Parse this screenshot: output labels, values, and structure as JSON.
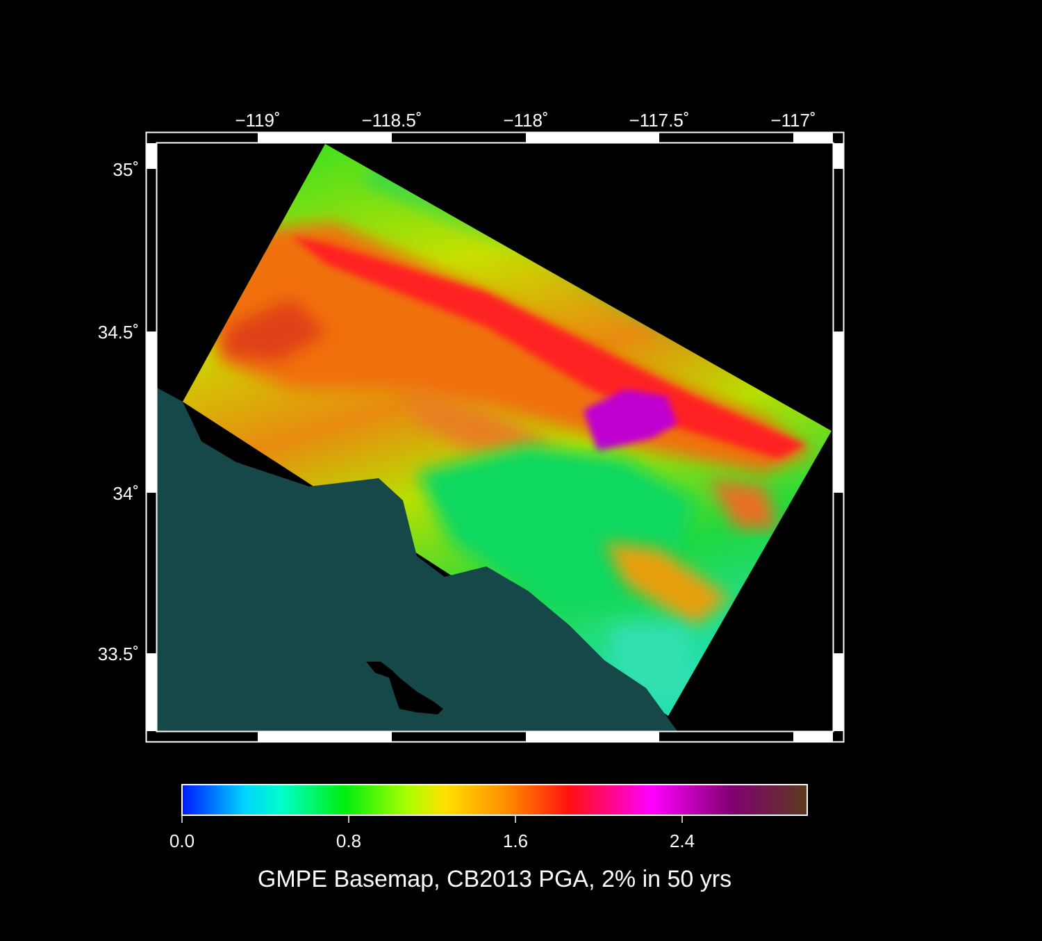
{
  "map": {
    "title": "GMPE Basemap, CB2013 PGA, 2% in 50 yrs",
    "lon_ticks": [
      "−119˚",
      "−118.5˚",
      "−118˚",
      "−117.5˚",
      "−117˚"
    ],
    "lon_values": [
      -119,
      -118.5,
      -118,
      -117.5,
      -117
    ],
    "lat_ticks": [
      "35˚",
      "34.5˚",
      "34˚",
      "33.5˚"
    ],
    "lat_values": [
      35,
      34.5,
      34,
      33.5
    ],
    "lon_range": [
      -119.75,
      -116.73
    ],
    "lat_range": [
      33.27,
      35.08
    ],
    "ocean_color": "#16484a",
    "region": "Southern California (Los Angeles basin, San Gabriel Mountains, Santa Catalina Island)"
  },
  "colorbar": {
    "range": [
      0.0,
      3.0
    ],
    "tick_labels": [
      "0.0",
      "0.8",
      "1.6",
      "2.4"
    ],
    "tick_values": [
      0.0,
      0.8,
      1.6,
      2.4
    ],
    "colors": [
      "#0018ff",
      "#00d4ff",
      "#00ffc8",
      "#00ee10",
      "#a8ff00",
      "#ffe000",
      "#ff8c00",
      "#ff1010",
      "#ff00ff",
      "#900090",
      "#6a2a40",
      "#5c3a1e"
    ]
  }
}
